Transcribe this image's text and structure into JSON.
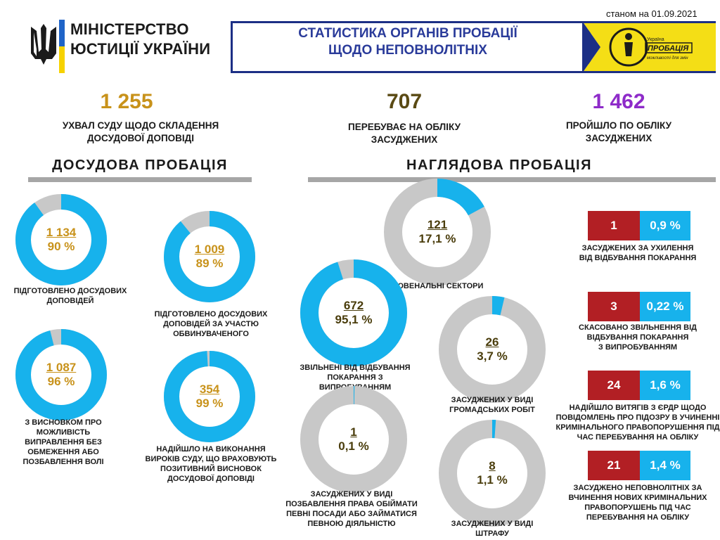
{
  "header": {
    "date_note": "станом на 01.09.2021",
    "ministry_line1": "МІНІСТЕРСТВО",
    "ministry_line2": "ЮСТИЦІЇ УКРАЇНИ",
    "title_line1": "СТАТИСТИКА ОРГАНІВ ПРОБАЦІЇ",
    "title_line2": "ЩОДО НЕПОВНОЛІТНІХ",
    "logo_text_top": "Україна",
    "logo_text_main": "ПРОБАЦІЯ",
    "logo_text_bottom": "можливості для змін"
  },
  "stats": [
    {
      "value": "1 255",
      "label_line1": "УХВАЛ СУДУ ЩОДО СКЛАДЕННЯ",
      "label_line2": "ДОСУДОВОЇ ДОПОВІДІ",
      "color": "#c8921a"
    },
    {
      "value": "707",
      "label_line1": "ПЕРЕБУВАЄ НА ОБЛІКУ",
      "label_line2": "ЗАСУДЖЕНИХ",
      "color": "#5a4a14"
    },
    {
      "value": "1 462",
      "label_line1": "ПРОЙШЛО ПО ОБЛІКУ",
      "label_line2": "ЗАСУДЖЕНИХ",
      "color": "#8e2bc9"
    }
  ],
  "sections": {
    "pretrial": "ДОСУДОВА  ПРОБАЦІЯ",
    "supervisory": "НАГЛЯДОВА  ПРОБАЦІЯ"
  },
  "colors": {
    "donut_blue": "#17b2ec",
    "donut_grey": "#c8c8c8",
    "pretrial_text": "#c8921a",
    "supervisory_text": "#4a3d0c",
    "red_box": "#b21f24",
    "blue_box": "#17b2ec"
  },
  "chart_data": [
    {
      "type": "pie",
      "variant": "donut",
      "group": "ДОСУДОВА ПРОБАЦІЯ",
      "items": [
        {
          "value": "1 134",
          "percent": 90,
          "pct_label": "90 %",
          "caption": [
            "ПІДГОТОВЛЕНО ДОСУДОВИХ",
            "ДОПОВІДЕЙ"
          ]
        },
        {
          "value": "1 009",
          "percent": 89,
          "pct_label": "89 %",
          "caption": [
            "ПІДГОТОВЛЕНО ДОСУДОВИХ",
            "ДОПОВІДЕЙ ЗА УЧАСТЮ",
            "ОБВИНУВАЧЕНОГО"
          ]
        },
        {
          "value": "1 087",
          "percent": 96,
          "pct_label": "96 %",
          "caption": [
            "З ВИСНОВКОМ ПРО",
            "МОЖЛИВІСТЬ",
            "ВИПРАВЛЕННЯ БЕЗ",
            "ОБМЕЖЕННЯ АБО",
            "ПОЗБАВЛЕННЯ ВОЛІ"
          ]
        },
        {
          "value": "354",
          "percent": 99,
          "pct_label": "99 %",
          "caption": [
            "НАДІЙШЛО НА ВИКОНАННЯ",
            "ВИРОКІВ СУДУ, ЩО ВРАХОВУЮТЬ",
            "ПОЗИТИВНИЙ ВИСНОВОК",
            "ДОСУДОВОЇ ДОПОВІДІ"
          ]
        }
      ]
    },
    {
      "type": "pie",
      "variant": "donut",
      "group": "НАГЛЯДОВА ПРОБАЦІЯ",
      "items": [
        {
          "value": "121",
          "percent": 17.1,
          "pct_label": "17,1 %",
          "caption": [
            "ЮВЕНАЛЬНІ СЕКТОРИ"
          ]
        },
        {
          "value": "672",
          "percent": 95.1,
          "pct_label": "95,1 %",
          "caption": [
            "ЗВІЛЬНЕНІ  ВІД ВІДБУВАННЯ",
            "ПОКАРАННЯ З",
            "ВИПРОБУВАННЯМ"
          ]
        },
        {
          "value": "26",
          "percent": 3.7,
          "pct_label": "3,7 %",
          "caption": [
            "ЗАСУДЖЕНИХ  У ВИДІ",
            "ГРОМАДСЬКИХ РОБІТ"
          ]
        },
        {
          "value": "1",
          "percent": 0.1,
          "pct_label": "0,1 %",
          "caption": [
            "ЗАСУДЖЕНИХ  У ВИДІ",
            "ПОЗБАВЛЕННЯ  ПРАВА ОБІЙМАТИ",
            "ПЕВНІ ПОСАДИ АБО ЗАЙМАТИСЯ",
            "ПЕВНОЮ ДІЯЛЬНІСТЮ"
          ]
        },
        {
          "value": "8",
          "percent": 1.1,
          "pct_label": "1,1 %",
          "caption": [
            "ЗАСУДЖЕНИХ  У ВИДІ",
            "ШТРАФУ"
          ]
        }
      ]
    }
  ],
  "indicators": [
    {
      "count": "1",
      "pct": "0,9 %",
      "caption": [
        "ЗАСУДЖЕНИХ  ЗА УХИЛЕННЯ",
        "ВІД ВІДБУВАННЯ  ПОКАРАННЯ"
      ]
    },
    {
      "count": "3",
      "pct": "0,22 %",
      "caption": [
        "СКАСОВАНО ЗВІЛЬНЕННЯ  ВІД",
        "ВІДБУВАННЯ  ПОКАРАННЯ",
        "З ВИПРОБУВАННЯМ"
      ]
    },
    {
      "count": "24",
      "pct": "1,6 %",
      "caption": [
        "НАДІЙШЛО ВИТЯГІВ  З ЄРДР ЩОДО",
        "ПОВІДОМЛЕНЬ  ПРО ПІДОЗРУ В УЧИНЕННІ",
        "КРИМІНАЛЬНОГО  ПРАВОПОРУШЕННЯ  ПІД",
        "ЧАС ПЕРЕБУВАННЯ  НА ОБЛІКУ"
      ]
    },
    {
      "count": "21",
      "pct": "1,4 %",
      "caption": [
        "ЗАСУДЖЕНО НЕПОВНОЛІТНІХ  ЗА",
        "ВЧИНЕННЯ НОВИХ КРИМІНАЛЬНИХ",
        "ПРАВОПОРУШЕНЬ  ПІД ЧАС",
        "ПЕРЕБУВАННЯ  НА ОБЛІКУ"
      ]
    }
  ]
}
